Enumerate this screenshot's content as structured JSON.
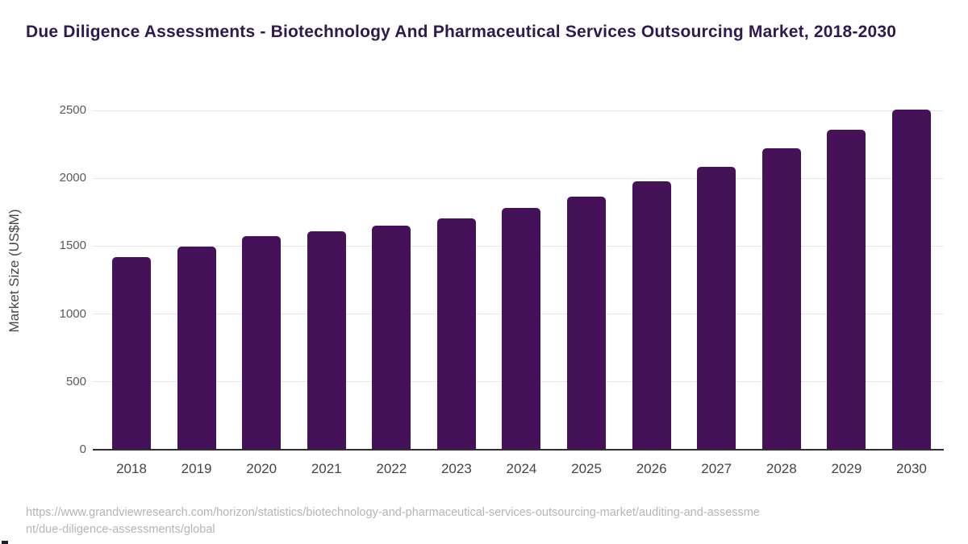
{
  "title": "Due Diligence Assessments - Biotechnology And Pharmaceutical Services Outsourcing Market, 2018-2030",
  "chart_data": {
    "type": "bar",
    "categories": [
      "2018",
      "2019",
      "2020",
      "2021",
      "2022",
      "2023",
      "2024",
      "2025",
      "2026",
      "2027",
      "2028",
      "2029",
      "2030"
    ],
    "values": [
      1420,
      1495,
      1575,
      1610,
      1650,
      1705,
      1780,
      1865,
      1975,
      2085,
      2220,
      2355,
      2505
    ],
    "title": "Due Diligence Assessments - Biotechnology And Pharmaceutical Services Outsourcing Market, 2018-2030",
    "xlabel": "",
    "ylabel": "Market Size (US$M)",
    "yticks": [
      0,
      500,
      1000,
      1500,
      2000,
      2500
    ],
    "ylim": [
      0,
      2600
    ],
    "grid": true,
    "legend_position": "none",
    "bar_color": "#451259"
  },
  "colors": {
    "bar": "#451259",
    "title_text": "#2e1a4e",
    "axis_text": "#4a4a4a",
    "gridline": "#e7e7e7",
    "axis_line": "#303030",
    "footer_text": "#b5b5b5"
  },
  "footer": {
    "source_url": "https://www.grandviewresearch.com/horizon/statistics/biotechnology-and-pharmaceutical-services-outsourcing-market/auditing-and-assessment/due-diligence-assessments/global"
  }
}
